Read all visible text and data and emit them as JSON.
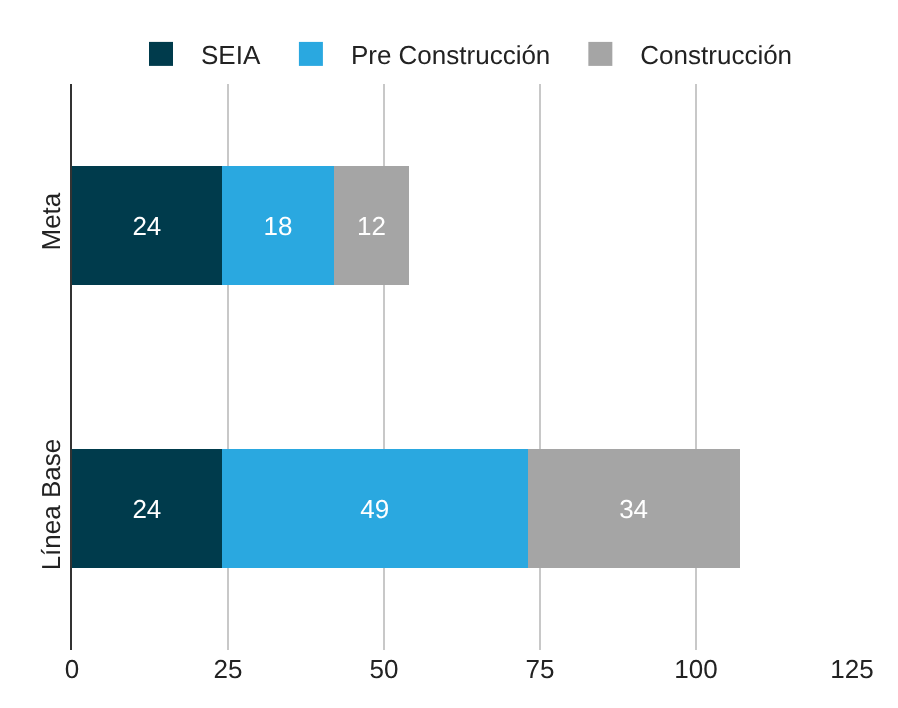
{
  "chart_data": {
    "type": "bar",
    "orientation": "horizontal",
    "stacked": true,
    "categories": [
      "Meta",
      "Línea Base"
    ],
    "series": [
      {
        "name": "SEIA",
        "color": "#003b4c",
        "values": [
          24,
          24
        ]
      },
      {
        "name": "Pre Construcción",
        "color": "#2aa8e0",
        "values": [
          18,
          49
        ]
      },
      {
        "name": "Construcción",
        "color": "#a5a5a5",
        "values": [
          12,
          34
        ]
      }
    ],
    "xlim": [
      0,
      125
    ],
    "xticks": [
      0,
      25,
      50,
      75,
      100,
      125
    ],
    "grid": "x",
    "legend": "top",
    "data_labels": true
  }
}
